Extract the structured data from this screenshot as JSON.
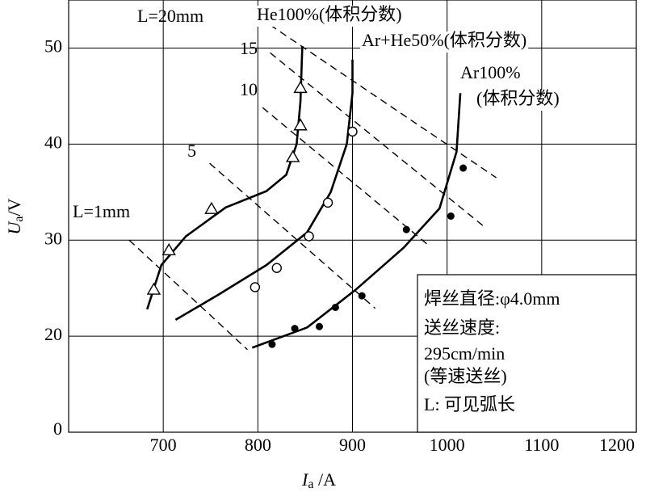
{
  "chart_data": {
    "type": "scatter",
    "xlabel": {
      "symbol": "I",
      "subscript": "a",
      "unit": " /A"
    },
    "ylabel": {
      "symbol": "U",
      "subscript": "a",
      "unit": "/V"
    },
    "xlim": [
      600,
      1200
    ],
    "xticks": [
      700,
      800,
      900,
      1000,
      1100,
      1200
    ],
    "ylim": [
      0,
      55
    ],
    "yticks": [
      0,
      20,
      30,
      40,
      50
    ],
    "grid": true,
    "series": [
      {
        "label_lines": [
          "He100%(体积分数)"
        ],
        "marker": "triangle",
        "color": "#000000",
        "x": [
          690,
          706,
          751,
          837,
          845,
          845
        ],
        "values": [
          24.8,
          28.9,
          33.2,
          38.6,
          41.9,
          45.8
        ],
        "fit_x": [
          683,
          698,
          724,
          766,
          809,
          830,
          841,
          845,
          847
        ],
        "fit_values": [
          22.8,
          27.4,
          30.4,
          33.4,
          35.1,
          36.8,
          40,
          44.4,
          50.2
        ]
      },
      {
        "label_lines": [
          "Ar+He50%(体积分数)"
        ],
        "marker": "circle",
        "color": "#000000",
        "x": [
          797,
          820,
          854,
          874,
          900
        ],
        "values": [
          25.1,
          27.1,
          30.4,
          33.9,
          41.3
        ],
        "fit_x": [
          713,
          758,
          809,
          852,
          877,
          894,
          900,
          900
        ],
        "fit_values": [
          21.7,
          24.3,
          27.4,
          30.8,
          35,
          40,
          45.3,
          48.8
        ]
      },
      {
        "label_lines": [
          "Ar100%",
          "(体积分数)"
        ],
        "marker": "dot",
        "color": "#000000",
        "x": [
          815,
          839,
          865,
          882,
          910,
          957,
          1004,
          1017
        ],
        "values": [
          18.3,
          20.8,
          21.0,
          23.0,
          24.2,
          31.1,
          32.5,
          37.5
        ],
        "fit_x": [
          794,
          852,
          903,
          954,
          992,
          1010,
          1014
        ],
        "fit_values": [
          17.6,
          20.9,
          24.8,
          29.2,
          33.3,
          39.2,
          45.3
        ]
      }
    ],
    "arc_length_lines": [
      {
        "label": "L=1mm",
        "x": [
          664,
          789
        ],
        "values": [
          30,
          17.2
        ]
      },
      {
        "label": "5",
        "x": [
          749,
          924
        ],
        "values": [
          38,
          22.9
        ]
      },
      {
        "label": "10",
        "x": [
          805,
          980
        ],
        "values": [
          43.8,
          29.5
        ]
      },
      {
        "label": "15",
        "x": [
          813,
          1038
        ],
        "values": [
          49.5,
          31.5
        ]
      },
      {
        "label": "L=20mm",
        "x": [
          813,
          1052
        ],
        "values": [
          52.4,
          36.5
        ]
      }
    ],
    "note_lines": [
      "焊丝直径:φ4.0mm",
      "送丝速度:",
      "295cm/min",
      "(等速送丝)",
      "L: 可见弧长"
    ]
  }
}
